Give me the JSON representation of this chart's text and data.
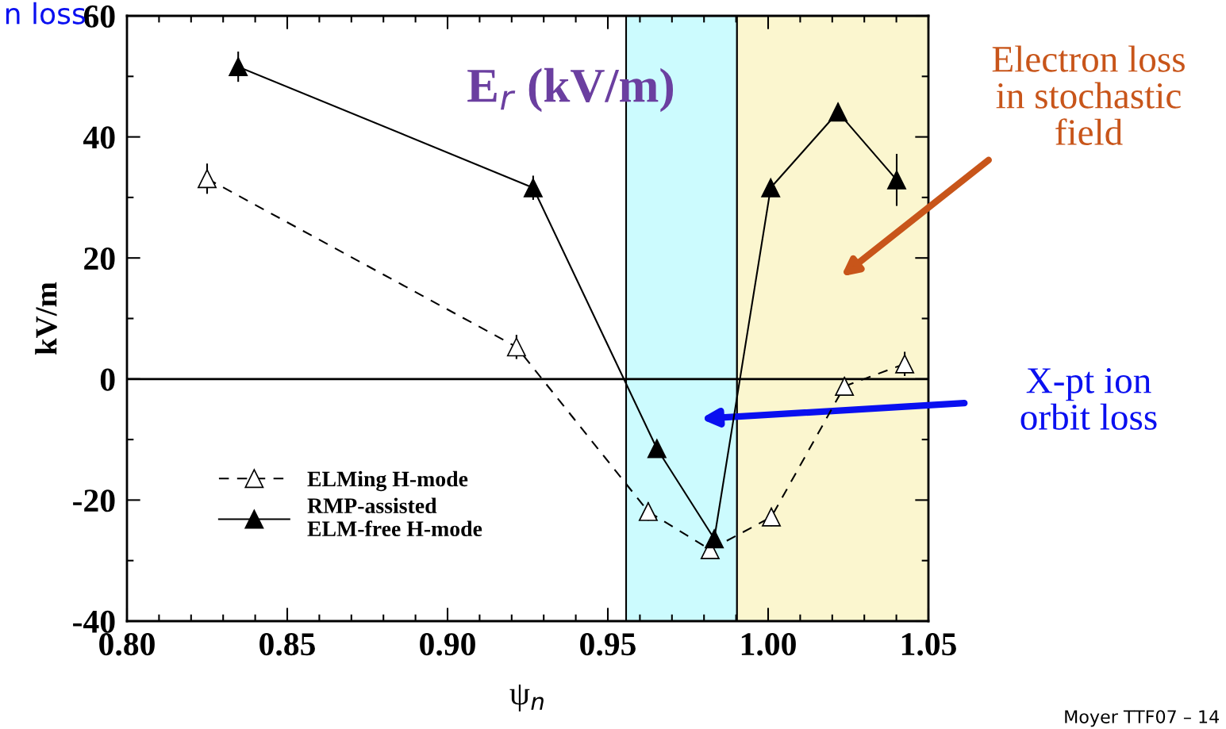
{
  "chart_data": {
    "type": "line",
    "title": "E$_{r}$ (kV/m)",
    "xlabel": "ψ$_{n}$",
    "ylabel": "kV/m",
    "xlim": [
      0.8,
      1.05
    ],
    "xticks": [
      {
        "value": 0.8,
        "label": "0.80"
      },
      {
        "value": 0.85,
        "label": "0.85"
      },
      {
        "value": 0.9,
        "label": "0.90"
      },
      {
        "value": 0.95,
        "label": "0.95"
      },
      {
        "value": 1.0,
        "label": "1.00"
      },
      {
        "value": 1.05,
        "label": "1.05"
      }
    ],
    "ylim": [
      -40,
      60
    ],
    "yticks": [
      -40,
      -20,
      0,
      20,
      40,
      60
    ],
    "series": [
      {
        "name": "ELMing H-mode",
        "color": "#000000",
        "line_style": "dashed",
        "x": [
          0.825,
          0.9215,
          0.9626,
          0.9819,
          1.001,
          1.0238,
          1.0426
        ],
        "values": [
          33.1,
          5.3,
          -21.9,
          -28.2,
          -22.8,
          -1.2,
          2.5
        ],
        "errors": [
          2.5,
          2,
          1.5,
          1.5,
          1.5,
          1.5,
          2
        ]
      },
      {
        "name": "RMP-assisted\nELM-free H-mode",
        "color": "#000000",
        "line_style": "solid",
        "x": [
          0.8347,
          0.9267,
          0.9653,
          0.9832,
          1.0008,
          1.0218,
          1.0401
        ],
        "values": [
          51.6,
          31.6,
          -11.5,
          -26.4,
          31.6,
          44.1,
          32.9
        ],
        "errors": [
          2.5,
          2,
          1,
          1,
          1,
          1.5,
          4.3
        ]
      }
    ],
    "marker": "triangle",
    "legend": "bottom left",
    "grid": false,
    "ref_lines": [
      {
        "axis": "y",
        "value": 0,
        "label": null
      }
    ],
    "bands": [
      {
        "axis": "x",
        "from": 0.9557,
        "to": 0.9903,
        "label": null,
        "color": "#ccfbfe"
      },
      {
        "axis": "x",
        "from": 0.9903,
        "to": 1.05,
        "label": null,
        "color": "#fbf6cf"
      }
    ],
    "annotations": [
      "Electron loss\nin stochastic\nfield",
      "X-pt ion\norbit loss",
      "n loss",
      "Moyer TTF07 – 14"
    ]
  }
}
